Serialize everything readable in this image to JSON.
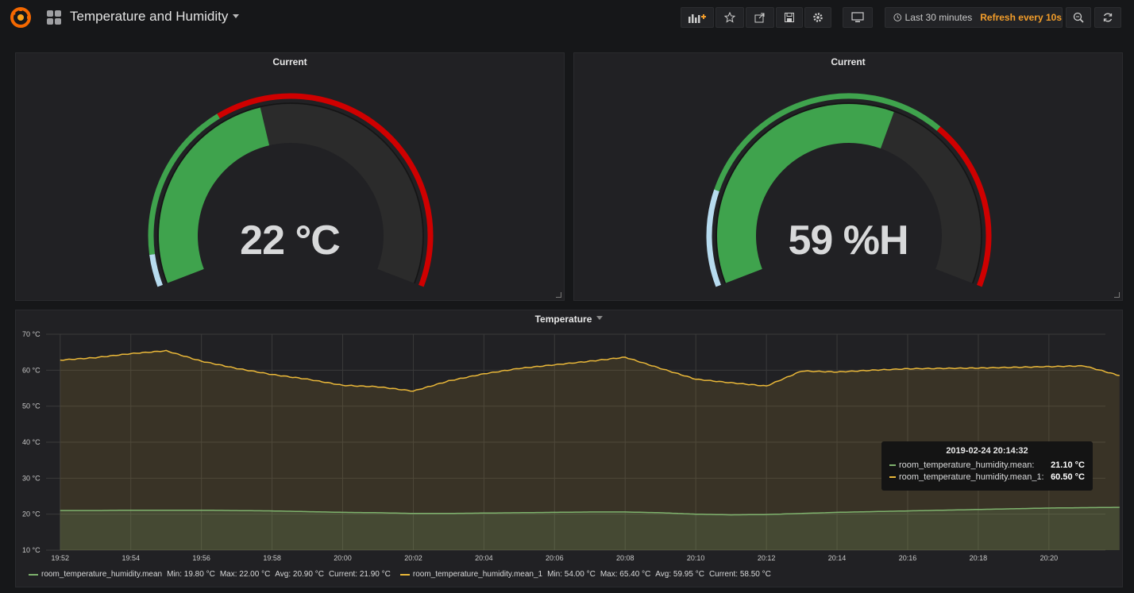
{
  "dashboard": {
    "title": "Temperature and Humidity"
  },
  "toolbar": {
    "time_range": "Last 30 minutes",
    "refresh": "Refresh every 10s",
    "accent_color": "#f29d2a"
  },
  "panels": {
    "gauge_temperature": {
      "title": "Current",
      "value_text": "22 °C",
      "value": 22,
      "unit": "°C",
      "colors": [
        "#b7dbef",
        "#3fa34d",
        "#cf0000"
      ]
    },
    "gauge_humidity": {
      "title": "Current",
      "value_text": "59 %H",
      "value": 59,
      "unit": "%H",
      "colors": [
        "#b7dbef",
        "#3fa34d",
        "#cf0000"
      ]
    },
    "graph": {
      "title": "Temperature"
    }
  },
  "tooltip": {
    "time": "2019-02-24 20:14:32",
    "rows": [
      {
        "label": "room_temperature_humidity.mean:",
        "value": "21.10 °C",
        "color": "#7eb26d"
      },
      {
        "label": "room_temperature_humidity.mean_1:",
        "value": "60.50 °C",
        "color": "#eab839"
      }
    ]
  },
  "legend": [
    {
      "name": "room_temperature_humidity.mean",
      "min": "Min: 19.80 °C",
      "max": "Max: 22.00 °C",
      "avg": "Avg: 20.90 °C",
      "current": "Current: 21.90 °C",
      "color": "#7eb26d"
    },
    {
      "name": "room_temperature_humidity.mean_1",
      "min": "Min: 54.00 °C",
      "max": "Max: 65.40 °C",
      "avg": "Avg: 59.95 °C",
      "current": "Current: 58.50 °C",
      "color": "#eab839"
    }
  ],
  "chart_data": {
    "type": "area",
    "title": "Temperature",
    "y_ticks": [
      "10 °C",
      "20 °C",
      "30 °C",
      "40 °C",
      "50 °C",
      "60 °C",
      "70 °C"
    ],
    "ylim": [
      10,
      70
    ],
    "x_ticks": [
      "19:52",
      "19:54",
      "19:56",
      "19:58",
      "20:00",
      "20:02",
      "20:04",
      "20:06",
      "20:08",
      "20:10",
      "20:12",
      "20:14",
      "20:16",
      "20:18",
      "20:20"
    ],
    "x_minutes": [
      0,
      1,
      2,
      3,
      4,
      5,
      6,
      7,
      8,
      9,
      10,
      11,
      12,
      13,
      14,
      15,
      16,
      17,
      18,
      19,
      20,
      21,
      22,
      23,
      24,
      25,
      26,
      27,
      28,
      29,
      30
    ],
    "series": [
      {
        "name": "room_temperature_humidity.mean",
        "color": "#7eb26d",
        "values": [
          21.0,
          21.0,
          21.1,
          21.1,
          21.1,
          21.0,
          20.9,
          20.7,
          20.5,
          20.4,
          20.2,
          20.2,
          20.3,
          20.4,
          20.5,
          20.6,
          20.6,
          20.4,
          20.0,
          19.8,
          19.9,
          20.2,
          20.5,
          20.7,
          20.9,
          21.1,
          21.3,
          21.5,
          21.7,
          21.8,
          21.9
        ]
      },
      {
        "name": "room_temperature_humidity.mean_1",
        "color": "#eab839",
        "values": [
          62.8,
          63.5,
          64.6,
          65.4,
          62.5,
          60.5,
          58.8,
          57.5,
          55.8,
          55.4,
          54.2,
          57.0,
          59.0,
          60.5,
          61.5,
          62.5,
          63.6,
          60.5,
          57.5,
          56.5,
          55.6,
          59.8,
          59.5,
          60.0,
          60.4,
          60.5,
          60.6,
          60.8,
          61.0,
          61.2,
          58.5
        ]
      }
    ]
  }
}
